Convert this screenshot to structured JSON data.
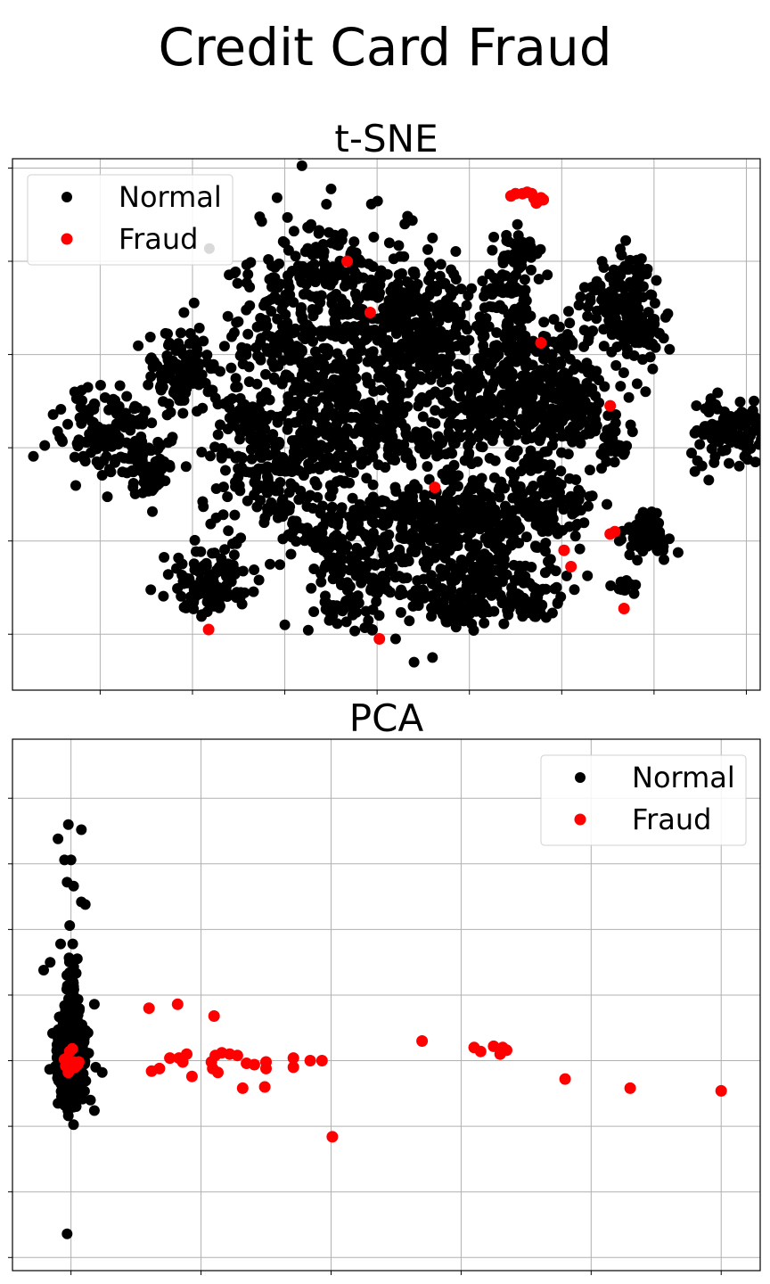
{
  "figure": {
    "title": "Credit Card Fraud"
  },
  "chart_data": [
    {
      "type": "scatter",
      "title": "t-SNE",
      "xlabel": "",
      "ylabel": "",
      "xlim": [
        -90,
        72
      ],
      "ylim": [
        -52,
        62
      ],
      "grid": true,
      "tick_labels_visible": false,
      "legend_placement": "top-left",
      "series": [
        {
          "name": "Normal",
          "color": "#000000",
          "clusters": [
            {
              "center": [
                -70,
                3.5
              ],
              "spread": [
                5,
                4.5
              ],
              "count": 120
            },
            {
              "center": [
                -61,
                -3.5
              ],
              "spread": [
                3,
                4
              ],
              "count": 80
            },
            {
              "center": [
                -53,
                16
              ],
              "spread": [
                4,
                4
              ],
              "count": 130
            },
            {
              "center": [
                -47,
                -29
              ],
              "spread": [
                5,
                4
              ],
              "count": 110
            },
            {
              "center": [
                -34,
                -6
              ],
              "spread": [
                7,
                6
              ],
              "count": 170
            },
            {
              "center": [
                -39,
                7
              ],
              "spread": [
                3,
                2.5
              ],
              "count": 50
            },
            {
              "center": [
                -22,
                32
              ],
              "spread": [
                11,
                9
              ],
              "count": 300
            },
            {
              "center": [
                -30,
                20
              ],
              "spread": [
                6,
                4
              ],
              "count": 80
            },
            {
              "center": [
                -20,
                5
              ],
              "spread": [
                8,
                6
              ],
              "count": 200
            },
            {
              "center": [
                -12,
                -26
              ],
              "spread": [
                6,
                5
              ],
              "count": 120
            },
            {
              "center": [
                -21,
                -19
              ],
              "spread": [
                5,
                4
              ],
              "count": 90
            },
            {
              "center": [
                -4,
                -15
              ],
              "spread": [
                7,
                3
              ],
              "count": 100
            },
            {
              "center": [
                -5,
                18
              ],
              "spread": [
                10,
                10
              ],
              "count": 350
            },
            {
              "center": [
                0,
                0
              ],
              "spread": [
                4,
                2
              ],
              "count": 40
            },
            {
              "center": [
                -2,
                30
              ],
              "spread": [
                6,
                4
              ],
              "count": 80
            },
            {
              "center": [
                18,
                12
              ],
              "spread": [
                9,
                8
              ],
              "count": 300
            },
            {
              "center": [
                8,
                -15
              ],
              "spread": [
                7,
                5
              ],
              "count": 170
            },
            {
              "center": [
                12,
                -28
              ],
              "spread": [
                8,
                4
              ],
              "count": 150
            },
            {
              "center": [
                25,
                -13
              ],
              "spread": [
                5,
                6
              ],
              "count": 140
            },
            {
              "center": [
                29,
                8
              ],
              "spread": [
                7,
                6
              ],
              "count": 130
            },
            {
              "center": [
                17,
                35
              ],
              "spread": [
                3,
                2
              ],
              "count": 40
            },
            {
              "center": [
                19,
                27
              ],
              "spread": [
                2,
                3
              ],
              "count": 40
            },
            {
              "center": [
                20,
                42
              ],
              "spread": [
                3,
                3
              ],
              "count": 40
            },
            {
              "center": [
                29,
                22
              ],
              "spread": [
                2,
                1.5
              ],
              "count": 15
            },
            {
              "center": [
                42,
                30
              ],
              "spread": [
                4,
                4
              ],
              "count": 120
            },
            {
              "center": [
                46,
                25
              ],
              "spread": [
                3,
                3
              ],
              "count": 50
            },
            {
              "center": [
                43,
                38
              ],
              "spread": [
                2,
                2
              ],
              "count": 20
            },
            {
              "center": [
                40,
                0
              ],
              "spread": [
                2,
                2
              ],
              "count": 20
            },
            {
              "center": [
                48,
                -19
              ],
              "spread": [
                3,
                2.5
              ],
              "count": 60
            },
            {
              "center": [
                43,
                -30
              ],
              "spread": [
                1.5,
                1
              ],
              "count": 10
            },
            {
              "center": [
                66,
                3
              ],
              "spread": [
                5,
                4
              ],
              "count": 110
            },
            {
              "center": [
                6,
                -35
              ],
              "spread": [
                4,
                2
              ],
              "count": 50
            },
            {
              "center": [
                22,
                -34
              ],
              "spread": [
                3,
                2
              ],
              "count": 30
            },
            {
              "center": [
                -19,
                -35
              ],
              "spread": [
                3,
                2
              ],
              "count": 30
            }
          ],
          "points": [
            [
              -5,
              48
            ],
            [
              1,
              45
            ],
            [
              -7,
              -41
            ],
            [
              -3,
              -46
            ],
            [
              -31,
              -38
            ],
            [
              -12,
              -39
            ],
            [
              1,
              -45
            ],
            [
              -52,
              16
            ],
            [
              -46,
              -30
            ]
          ]
        },
        {
          "name": "Fraud",
          "color": "#ff0000",
          "points": [
            [
              20.5,
              54.5
            ],
            [
              21.5,
              54.8
            ],
            [
              22.5,
              54.5
            ],
            [
              23.0,
              53.5
            ],
            [
              24.5,
              53.6
            ],
            [
              25.0,
              53.2
            ],
            [
              19.0,
              54.5
            ],
            [
              18.0,
              54.0
            ],
            [
              23.5,
              52.5
            ],
            [
              24.0,
              53.0
            ],
            [
              -17.5,
              40.0
            ],
            [
              -12.5,
              29.0
            ],
            [
              24.5,
              22.5
            ],
            [
              39.5,
              9.0
            ],
            [
              1.5,
              -8.5
            ],
            [
              39.5,
              -18.5
            ],
            [
              40.5,
              -18.0
            ],
            [
              29.5,
              -22.0
            ],
            [
              31.0,
              -25.5
            ],
            [
              42.5,
              -34.5
            ],
            [
              -47.5,
              -39.0
            ],
            [
              -10.5,
              -41.0
            ]
          ]
        }
      ]
    },
    {
      "type": "scatter",
      "title": "PCA",
      "xlabel": "",
      "ylabel": "",
      "xlim": [
        -4.5,
        53
      ],
      "ylim": [
        -16,
        24.5
      ],
      "grid": true,
      "tick_labels_visible": false,
      "legend_placement": "top-right",
      "series": [
        {
          "name": "Normal",
          "color": "#000000",
          "clusters": [
            {
              "center": [
                0,
                0.2
              ],
              "spread": [
                0.45,
                1.4
              ],
              "count": 800
            },
            {
              "center": [
                0,
                3.8
              ],
              "spread": [
                0.3,
                2.2
              ],
              "count": 80
            }
          ],
          "points": [
            [
              -0.2,
              18
            ],
            [
              -1,
              16.9
            ],
            [
              0.8,
              17.6
            ],
            [
              -0.5,
              15.3
            ],
            [
              0,
              15.3
            ],
            [
              -0.3,
              13.6
            ],
            [
              0.2,
              13.3
            ],
            [
              0.8,
              12.1
            ],
            [
              1.1,
              11.9
            ],
            [
              -0.1,
              10.3
            ],
            [
              -0.8,
              8.9
            ],
            [
              -1.6,
              7.5
            ],
            [
              -2.1,
              6.9
            ],
            [
              1.8,
              4.3
            ],
            [
              2.4,
              -0.9
            ],
            [
              1.9,
              -0.5
            ],
            [
              1.8,
              -3.8
            ],
            [
              1.5,
              -3
            ],
            [
              -0.2,
              -4.2
            ],
            [
              -0.3,
              -13.2
            ],
            [
              0.4,
              -3.5
            ],
            [
              -0.5,
              -3.4
            ]
          ]
        },
        {
          "name": "Fraud",
          "color": "#ff0000",
          "points": [
            [
              -0.1,
              0.7
            ],
            [
              -0.3,
              0.2
            ],
            [
              0.2,
              -0.1
            ],
            [
              -0.4,
              -0.4
            ],
            [
              0.3,
              -0.5
            ],
            [
              -0.2,
              -0.9
            ],
            [
              0.5,
              -0.3
            ],
            [
              0,
              -0.6
            ],
            [
              0.1,
              0.9
            ],
            [
              -0.5,
              0.1
            ],
            [
              0.6,
              -0.1
            ],
            [
              0.1,
              -0.3
            ],
            [
              6,
              4
            ],
            [
              8.2,
              4.3
            ],
            [
              11,
              3.4
            ],
            [
              6.2,
              -0.8
            ],
            [
              6.8,
              -0.6
            ],
            [
              7.6,
              0.2
            ],
            [
              8.3,
              0.2
            ],
            [
              8.6,
              -0.1
            ],
            [
              8.9,
              0.5
            ],
            [
              9.3,
              -1.2
            ],
            [
              10.8,
              -0.1
            ],
            [
              10.9,
              -0.6
            ],
            [
              11.1,
              0.4
            ],
            [
              11.3,
              -0.9
            ],
            [
              11.6,
              0.6
            ],
            [
              12.2,
              0.5
            ],
            [
              12.8,
              0.4
            ],
            [
              13.5,
              -0.2
            ],
            [
              14.1,
              -0.3
            ],
            [
              15,
              -0.1
            ],
            [
              15,
              -0.6
            ],
            [
              17.1,
              0.2
            ],
            [
              17.1,
              -0.5
            ],
            [
              18.4,
              0
            ],
            [
              19.3,
              0
            ],
            [
              13.2,
              -2.1
            ],
            [
              14.9,
              -2
            ],
            [
              20.1,
              -5.8
            ],
            [
              27,
              1.5
            ],
            [
              31,
              1
            ],
            [
              31.5,
              0.7
            ],
            [
              32.5,
              1.1
            ],
            [
              33,
              0.5
            ],
            [
              33.2,
              1
            ],
            [
              33.5,
              0.8
            ],
            [
              38,
              -1.4
            ],
            [
              43,
              -2.1
            ],
            [
              50,
              -2.3
            ]
          ]
        }
      ]
    }
  ]
}
